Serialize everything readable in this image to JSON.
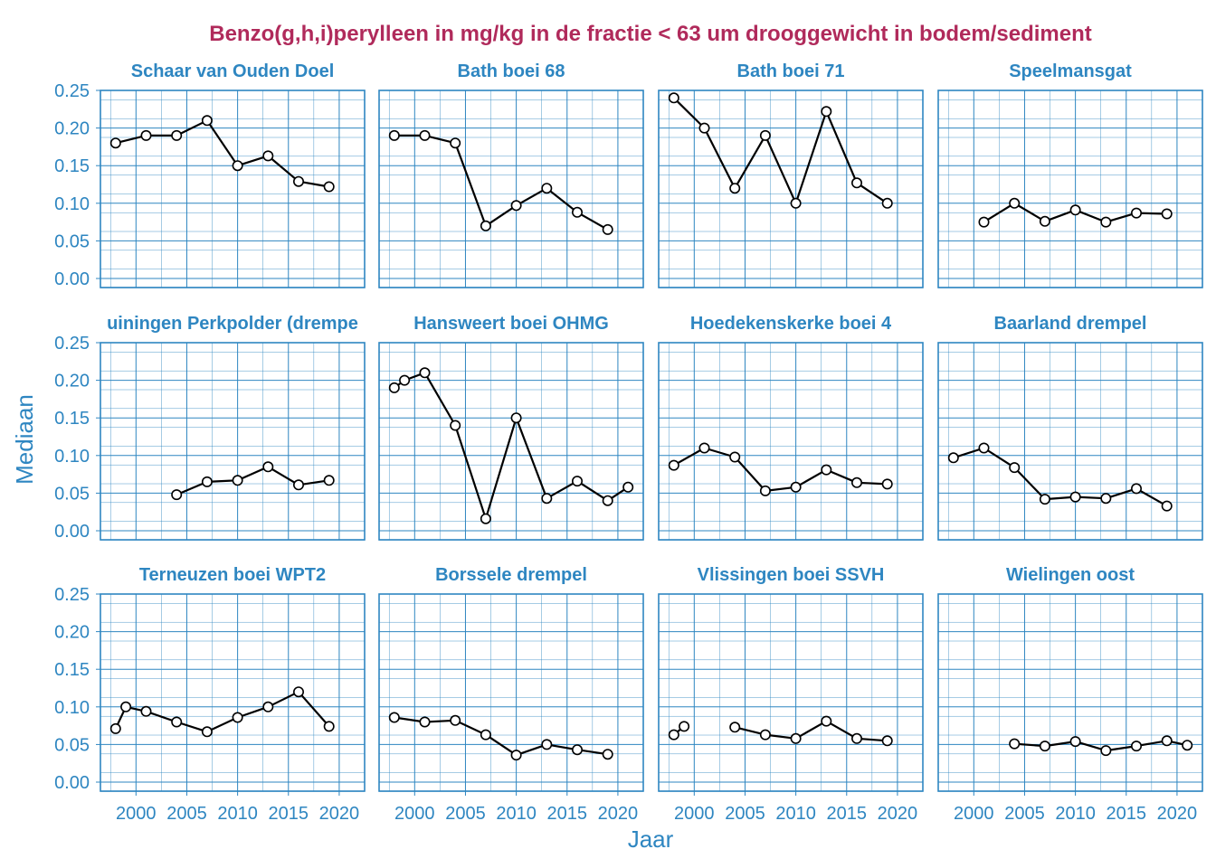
{
  "chart_data": {
    "type": "line",
    "title": "Benzo(g,h,i)perylleen in mg/kg in de fractie < 63 um drooggewicht in bodem/sediment",
    "xlabel": "Jaar",
    "ylabel": "Mediaan",
    "xlim": [
      1996.5,
      2022.5
    ],
    "ylim": [
      -0.012,
      0.25
    ],
    "xticks": [
      "2000",
      "2005",
      "2010",
      "2015",
      "2020"
    ],
    "yticks": [
      "0.00",
      "0.05",
      "0.10",
      "0.15",
      "0.20",
      "0.25"
    ],
    "grid": true,
    "panels": [
      {
        "name": "Schaar van Ouden Doel",
        "series": [
          [
            [
              1998,
              0.18
            ],
            [
              2001,
              0.19
            ],
            [
              2004,
              0.19
            ],
            [
              2007,
              0.21
            ],
            [
              2010,
              0.15
            ],
            [
              2013,
              0.163
            ],
            [
              2016,
              0.129
            ],
            [
              2019,
              0.122
            ]
          ]
        ]
      },
      {
        "name": "Bath boei 68",
        "series": [
          [
            [
              1998,
              0.19
            ],
            [
              2001,
              0.19
            ],
            [
              2004,
              0.18
            ],
            [
              2007,
              0.07
            ],
            [
              2010,
              0.097
            ],
            [
              2013,
              0.12
            ],
            [
              2016,
              0.088
            ],
            [
              2019,
              0.065
            ]
          ]
        ]
      },
      {
        "name": "Bath boei 71",
        "series": [
          [
            [
              1998,
              0.24
            ],
            [
              2001,
              0.2
            ],
            [
              2004,
              0.12
            ],
            [
              2007,
              0.19
            ],
            [
              2010,
              0.1
            ],
            [
              2013,
              0.222
            ],
            [
              2016,
              0.127
            ],
            [
              2019,
              0.1
            ]
          ]
        ]
      },
      {
        "name": "Speelmansgat",
        "series": [
          [
            [
              2001,
              0.075
            ],
            [
              2004,
              0.1
            ],
            [
              2007,
              0.076
            ],
            [
              2010,
              0.091
            ],
            [
              2013,
              0.075
            ],
            [
              2016,
              0.087
            ],
            [
              2019,
              0.086
            ]
          ]
        ]
      },
      {
        "name": "Ellewoutsdijk / Baalhoek / Waarde / Bruininingen Perkpolder (drempel)",
        "name_display": "uiningen Perkpolder (drempe",
        "series": [
          [
            [
              2004,
              0.048
            ],
            [
              2007,
              0.065
            ],
            [
              2010,
              0.067
            ],
            [
              2013,
              0.085
            ],
            [
              2016,
              0.061
            ],
            [
              2019,
              0.067
            ]
          ]
        ]
      },
      {
        "name": "Hansweert boei OHMG",
        "series": [
          [
            [
              1998,
              0.19
            ],
            [
              1999,
              0.2
            ],
            [
              2001,
              0.21
            ],
            [
              2004,
              0.14
            ],
            [
              2007,
              0.016
            ],
            [
              2010,
              0.15
            ],
            [
              2013,
              0.043
            ],
            [
              2016,
              0.066
            ],
            [
              2019,
              0.04
            ],
            [
              2021,
              0.058
            ]
          ]
        ]
      },
      {
        "name": "Hoedekenskerke boei 4",
        "series": [
          [
            [
              1998,
              0.087
            ],
            [
              2001,
              0.11
            ],
            [
              2004,
              0.098
            ],
            [
              2007,
              0.053
            ],
            [
              2010,
              0.058
            ],
            [
              2013,
              0.081
            ],
            [
              2016,
              0.064
            ],
            [
              2019,
              0.062
            ]
          ]
        ]
      },
      {
        "name": "Baarland drempel",
        "series": [
          [
            [
              1998,
              0.097
            ],
            [
              2001,
              0.11
            ],
            [
              2004,
              0.084
            ],
            [
              2007,
              0.042
            ],
            [
              2010,
              0.045
            ],
            [
              2013,
              0.043
            ],
            [
              2016,
              0.056
            ],
            [
              2019,
              0.033
            ]
          ]
        ]
      },
      {
        "name": "Terneuzen boei WPT2",
        "series": [
          [
            [
              1998,
              0.071
            ],
            [
              1999,
              0.1
            ],
            [
              2001,
              0.094
            ],
            [
              2004,
              0.08
            ],
            [
              2007,
              0.067
            ],
            [
              2010,
              0.086
            ],
            [
              2013,
              0.1
            ],
            [
              2016,
              0.12
            ],
            [
              2019,
              0.074
            ]
          ]
        ]
      },
      {
        "name": "Borssele drempel",
        "series": [
          [
            [
              1998,
              0.086
            ],
            [
              2001,
              0.08
            ],
            [
              2004,
              0.082
            ],
            [
              2007,
              0.063
            ],
            [
              2010,
              0.036
            ],
            [
              2013,
              0.05
            ],
            [
              2016,
              0.043
            ],
            [
              2019,
              0.037
            ]
          ]
        ]
      },
      {
        "name": "Vlissingen boei SSVH",
        "series": [
          [
            [
              1998,
              0.063
            ],
            [
              1999,
              0.074
            ]
          ],
          [
            [
              2004,
              0.073
            ],
            [
              2007,
              0.063
            ],
            [
              2010,
              0.058
            ],
            [
              2013,
              0.081
            ],
            [
              2016,
              0.058
            ],
            [
              2019,
              0.055
            ]
          ]
        ]
      },
      {
        "name": "Wielingen oost",
        "series": [
          [
            [
              2004,
              0.051
            ],
            [
              2007,
              0.048
            ],
            [
              2010,
              0.054
            ],
            [
              2013,
              0.042
            ],
            [
              2016,
              0.048
            ],
            [
              2019,
              0.055
            ],
            [
              2021,
              0.049
            ]
          ]
        ]
      }
    ],
    "colors": {
      "title": "#B02A5B",
      "axis_text": "#2E86C1",
      "grid": "#2E86C1",
      "line": "#000000",
      "marker_fill": "#ffffff"
    }
  }
}
